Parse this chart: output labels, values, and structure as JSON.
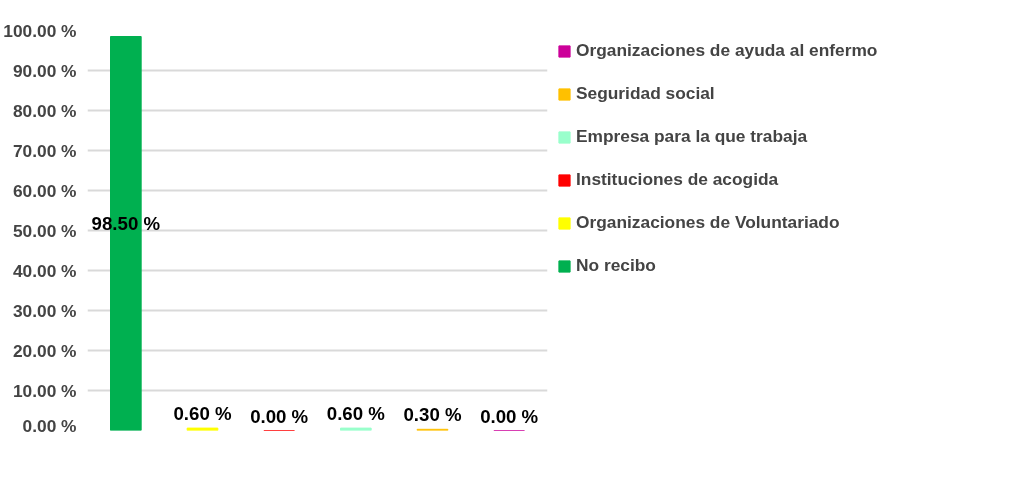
{
  "chart_data": {
    "type": "bar",
    "categories": [
      null,
      null,
      null,
      null,
      null,
      null
    ],
    "series": [
      {
        "name": "No recibo",
        "color": "#00b050",
        "values": [
          98.5,
          null,
          null,
          null,
          null,
          null
        ],
        "value_labels": [
          "98.50 %",
          null,
          null,
          null,
          null,
          null
        ]
      },
      {
        "name": "Organizaciones de Voluntariado",
        "color": "#ffff00",
        "values": [
          null,
          0.6,
          null,
          null,
          null,
          null
        ],
        "value_labels": [
          null,
          "0.60 %",
          null,
          null,
          null,
          null
        ]
      },
      {
        "name": "Instituciones de acogida",
        "color": "#ff0000",
        "values": [
          null,
          null,
          0,
          null,
          null,
          null
        ],
        "value_labels": [
          null,
          null,
          "0.00 %",
          null,
          null,
          null
        ]
      },
      {
        "name": "Empresa para la que trabaja",
        "color": "#99ffcc",
        "values": [
          null,
          null,
          null,
          0.6,
          null,
          null
        ],
        "value_labels": [
          null,
          null,
          null,
          "0.60 %",
          null,
          null
        ]
      },
      {
        "name": "Seguridad social",
        "color": "#ffc000",
        "values": [
          null,
          null,
          null,
          null,
          0.3,
          null
        ],
        "value_labels": [
          null,
          null,
          null,
          null,
          "0.30 %",
          null
        ]
      },
      {
        "name": "Organizaciones de ayuda al enfermo",
        "color": "#cc0099",
        "values": [
          null,
          null,
          null,
          null,
          null,
          0
        ],
        "value_labels": [
          null,
          null,
          null,
          null,
          null,
          "0.00 %"
        ]
      }
    ],
    "ylim": [
      0,
      100
    ],
    "yticks": [
      {
        "value": 0,
        "label": "0.00 %"
      },
      {
        "value": 10,
        "label": "10.00 %"
      },
      {
        "value": 20,
        "label": "20.00 %"
      },
      {
        "value": 30,
        "label": "30.00 %"
      },
      {
        "value": 40,
        "label": "40.00 %"
      },
      {
        "value": 50,
        "label": "50.00 %"
      },
      {
        "value": 60,
        "label": "60.00 %"
      },
      {
        "value": 70,
        "label": "70.00 %"
      },
      {
        "value": 80,
        "label": "80.00 %"
      },
      {
        "value": 90,
        "label": "90.00 %"
      },
      {
        "value": 100,
        "label": "100.00 %"
      }
    ],
    "grid": "y",
    "legend": "right"
  }
}
